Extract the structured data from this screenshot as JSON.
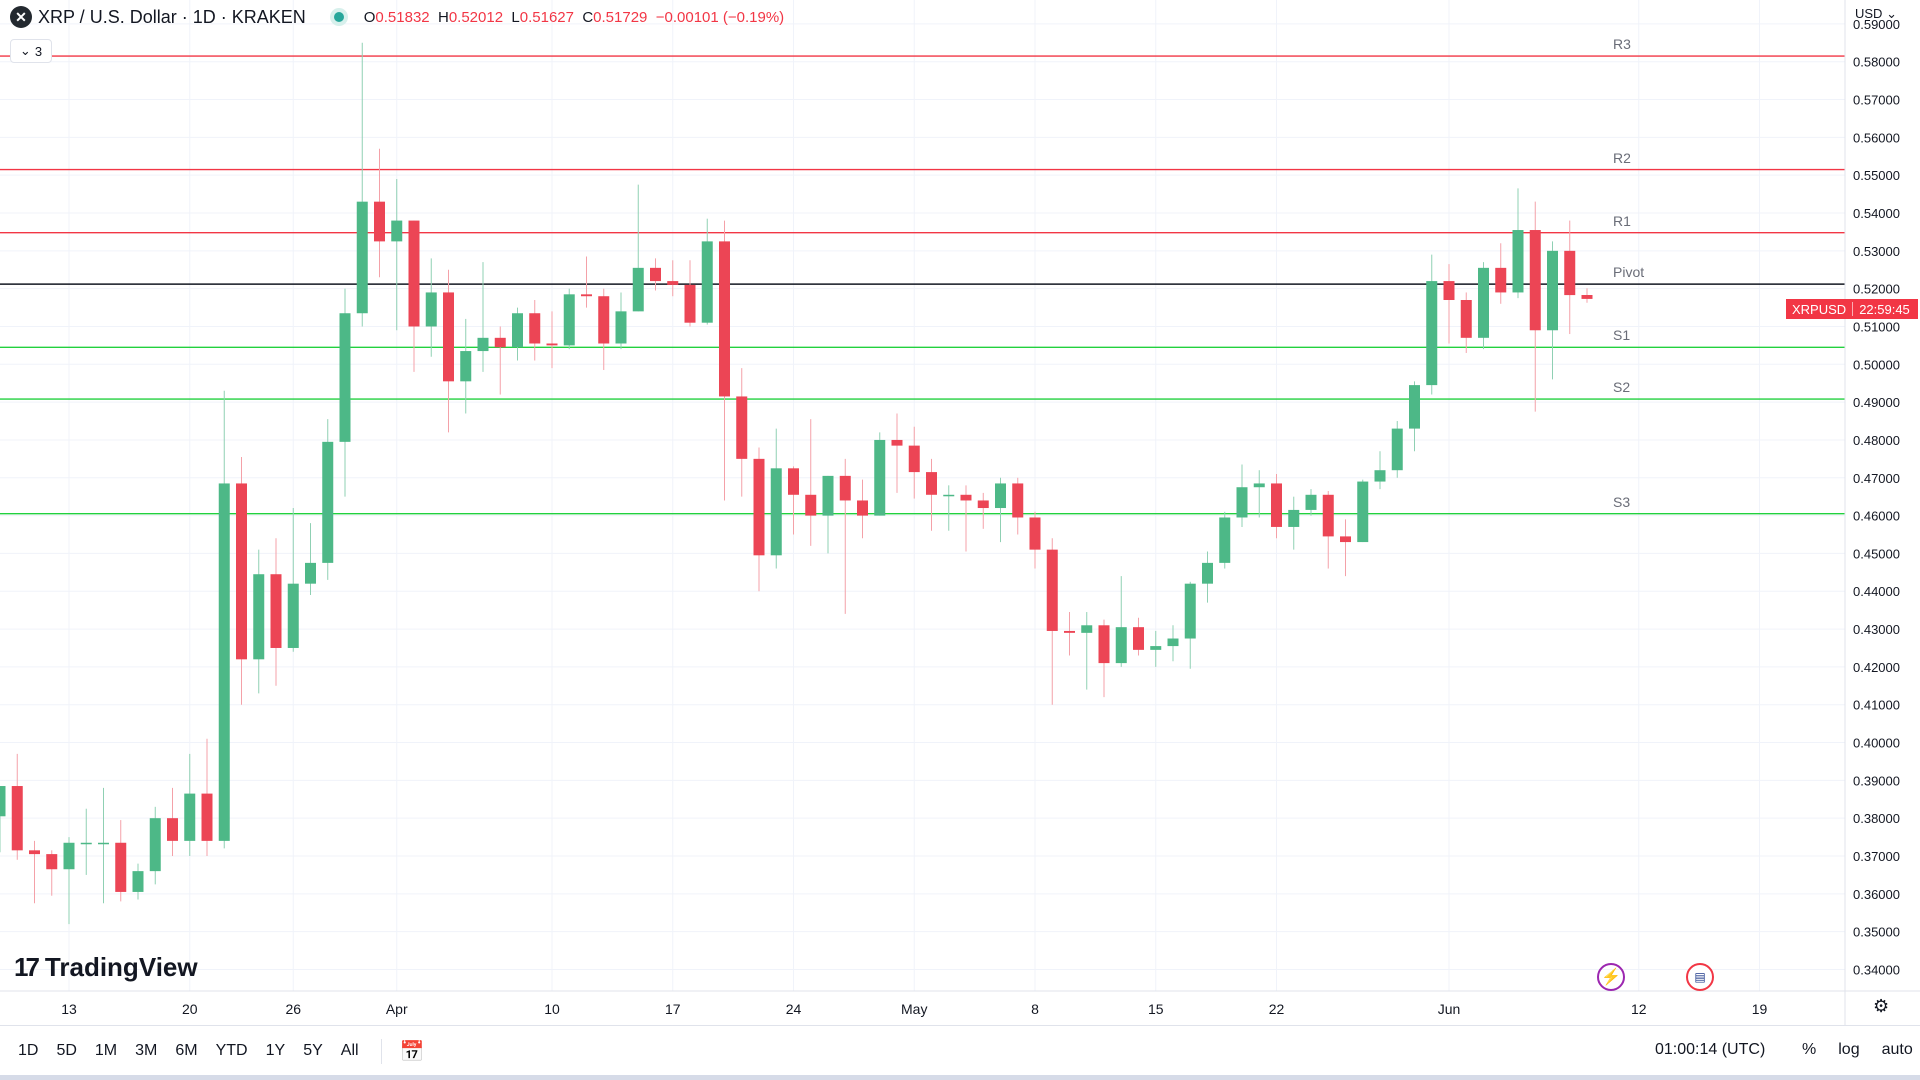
{
  "header": {
    "logo_glyph": "✕",
    "title": "XRP / U.S. Dollar · 1D · KRAKEN",
    "open_label": "O",
    "open": "0.51832",
    "high_label": "H",
    "high": "0.52012",
    "low_label": "L",
    "low": "0.51627",
    "close_label": "C",
    "close": "0.51729",
    "change": "−0.00101 (−0.19%)",
    "indicators_count": "3",
    "currency": "USD"
  },
  "price_tag": {
    "symbol": "XRPUSD",
    "countdown": "22:59:45",
    "color": "#f23645"
  },
  "levels": [
    {
      "label": "R3",
      "price": 0.5815,
      "color": "#f23645"
    },
    {
      "label": "R2",
      "price": 0.5515,
      "color": "#f23645"
    },
    {
      "label": "R1",
      "price": 0.5348,
      "color": "#f23645"
    },
    {
      "label": "Pivot",
      "price": 0.5212,
      "color": "#131722"
    },
    {
      "label": "S1",
      "price": 0.5045,
      "color": "#22d13e"
    },
    {
      "label": "S2",
      "price": 0.4908,
      "color": "#22d13e"
    },
    {
      "label": "S3",
      "price": 0.4605,
      "color": "#22d13e"
    }
  ],
  "chart_data": {
    "type": "candlestick",
    "ylim": [
      0.336,
      0.596
    ],
    "y_ticks": [
      "0.34000",
      "0.35000",
      "0.36000",
      "0.37000",
      "0.38000",
      "0.39000",
      "0.40000",
      "0.41000",
      "0.42000",
      "0.43000",
      "0.44000",
      "0.45000",
      "0.46000",
      "0.47000",
      "0.48000",
      "0.49000",
      "0.50000",
      "0.51000",
      "0.52000",
      "0.53000",
      "0.54000",
      "0.55000",
      "0.56000",
      "0.57000",
      "0.58000",
      "0.59000"
    ],
    "x_ticks": [
      {
        "label": "13",
        "i": 4
      },
      {
        "label": "20",
        "i": 11
      },
      {
        "label": "26",
        "i": 17
      },
      {
        "label": "Apr",
        "i": 23
      },
      {
        "label": "10",
        "i": 32
      },
      {
        "label": "17",
        "i": 39
      },
      {
        "label": "24",
        "i": 46
      },
      {
        "label": "May",
        "i": 53
      },
      {
        "label": "8",
        "i": 60
      },
      {
        "label": "15",
        "i": 67
      },
      {
        "label": "22",
        "i": 74
      },
      {
        "label": "Jun",
        "i": 84
      },
      {
        "label": "12",
        "i": 95
      },
      {
        "label": "19",
        "i": 102
      }
    ],
    "candles": [
      [
        0.3805,
        0.3865,
        0.371,
        0.3885
      ],
      [
        0.3885,
        0.397,
        0.369,
        0.3715
      ],
      [
        0.3715,
        0.374,
        0.3575,
        0.3705
      ],
      [
        0.3705,
        0.3715,
        0.3595,
        0.3665
      ],
      [
        0.3665,
        0.375,
        0.352,
        0.3735
      ],
      [
        0.3735,
        0.3825,
        0.365,
        0.3735
      ],
      [
        0.3735,
        0.388,
        0.3575,
        0.3735
      ],
      [
        0.3735,
        0.3795,
        0.358,
        0.3605
      ],
      [
        0.3605,
        0.368,
        0.3585,
        0.366
      ],
      [
        0.366,
        0.383,
        0.3625,
        0.38
      ],
      [
        0.38,
        0.388,
        0.37,
        0.374
      ],
      [
        0.374,
        0.397,
        0.37,
        0.3865
      ],
      [
        0.3865,
        0.401,
        0.37,
        0.374
      ],
      [
        0.374,
        0.493,
        0.372,
        0.4685
      ],
      [
        0.4685,
        0.4755,
        0.41,
        0.422
      ],
      [
        0.422,
        0.451,
        0.413,
        0.4445
      ],
      [
        0.4445,
        0.454,
        0.415,
        0.425
      ],
      [
        0.425,
        0.462,
        0.424,
        0.442
      ],
      [
        0.442,
        0.458,
        0.439,
        0.4475
      ],
      [
        0.4475,
        0.4855,
        0.443,
        0.4795
      ],
      [
        0.4795,
        0.52,
        0.465,
        0.5135
      ],
      [
        0.5135,
        0.585,
        0.51,
        0.543
      ],
      [
        0.543,
        0.557,
        0.523,
        0.5325
      ],
      [
        0.5325,
        0.549,
        0.509,
        0.538
      ],
      [
        0.538,
        0.538,
        0.498,
        0.51
      ],
      [
        0.51,
        0.528,
        0.502,
        0.519
      ],
      [
        0.519,
        0.525,
        0.482,
        0.4955
      ],
      [
        0.4955,
        0.512,
        0.487,
        0.5035
      ],
      [
        0.5035,
        0.527,
        0.498,
        0.507
      ],
      [
        0.507,
        0.51,
        0.492,
        0.5045
      ],
      [
        0.5045,
        0.515,
        0.501,
        0.5135
      ],
      [
        0.5135,
        0.517,
        0.501,
        0.5055
      ],
      [
        0.5055,
        0.514,
        0.499,
        0.505
      ],
      [
        0.505,
        0.52,
        0.504,
        0.5185
      ],
      [
        0.5185,
        0.5285,
        0.515,
        0.518
      ],
      [
        0.518,
        0.52,
        0.4985,
        0.5055
      ],
      [
        0.5055,
        0.519,
        0.504,
        0.514
      ],
      [
        0.514,
        0.5475,
        0.514,
        0.5255
      ],
      [
        0.5255,
        0.528,
        0.5195,
        0.522
      ],
      [
        0.522,
        0.5275,
        0.518,
        0.521
      ],
      [
        0.521,
        0.5275,
        0.51,
        0.511
      ],
      [
        0.511,
        0.5385,
        0.5105,
        0.5325
      ],
      [
        0.5325,
        0.538,
        0.464,
        0.4915
      ],
      [
        0.4915,
        0.499,
        0.465,
        0.475
      ],
      [
        0.475,
        0.478,
        0.44,
        0.4495
      ],
      [
        0.4495,
        0.483,
        0.446,
        0.4725
      ],
      [
        0.4725,
        0.473,
        0.455,
        0.4655
      ],
      [
        0.4655,
        0.4855,
        0.452,
        0.46
      ],
      [
        0.46,
        0.4705,
        0.45,
        0.4705
      ],
      [
        0.4705,
        0.475,
        0.434,
        0.464
      ],
      [
        0.464,
        0.4695,
        0.454,
        0.46
      ],
      [
        0.46,
        0.482,
        0.46,
        0.48
      ],
      [
        0.48,
        0.487,
        0.466,
        0.4785
      ],
      [
        0.4785,
        0.4835,
        0.4645,
        0.4715
      ],
      [
        0.4715,
        0.475,
        0.456,
        0.4655
      ],
      [
        0.4655,
        0.468,
        0.456,
        0.4655
      ],
      [
        0.4655,
        0.468,
        0.4505,
        0.464
      ],
      [
        0.464,
        0.466,
        0.4565,
        0.462
      ],
      [
        0.462,
        0.47,
        0.453,
        0.4685
      ],
      [
        0.4685,
        0.47,
        0.455,
        0.4595
      ],
      [
        0.4595,
        0.461,
        0.446,
        0.451
      ],
      [
        0.451,
        0.454,
        0.41,
        0.4295
      ],
      [
        0.4295,
        0.4345,
        0.423,
        0.429
      ],
      [
        0.429,
        0.4345,
        0.414,
        0.431
      ],
      [
        0.431,
        0.4325,
        0.412,
        0.421
      ],
      [
        0.421,
        0.444,
        0.42,
        0.4305
      ],
      [
        0.4305,
        0.433,
        0.423,
        0.4245
      ],
      [
        0.4245,
        0.4295,
        0.42,
        0.4255
      ],
      [
        0.4255,
        0.431,
        0.4215,
        0.4275
      ],
      [
        0.4275,
        0.4425,
        0.4195,
        0.442
      ],
      [
        0.442,
        0.4505,
        0.437,
        0.4475
      ],
      [
        0.4475,
        0.461,
        0.446,
        0.4595
      ],
      [
        0.4595,
        0.4735,
        0.457,
        0.4675
      ],
      [
        0.4675,
        0.472,
        0.4595,
        0.4685
      ],
      [
        0.4685,
        0.471,
        0.454,
        0.457
      ],
      [
        0.457,
        0.465,
        0.451,
        0.4615
      ],
      [
        0.4615,
        0.467,
        0.46,
        0.4655
      ],
      [
        0.4655,
        0.4665,
        0.446,
        0.4545
      ],
      [
        0.4545,
        0.459,
        0.444,
        0.453
      ],
      [
        0.453,
        0.4695,
        0.453,
        0.469
      ],
      [
        0.469,
        0.477,
        0.467,
        0.472
      ],
      [
        0.472,
        0.485,
        0.47,
        0.483
      ],
      [
        0.483,
        0.4955,
        0.477,
        0.4945
      ],
      [
        0.4945,
        0.529,
        0.492,
        0.522
      ],
      [
        0.522,
        0.5265,
        0.5055,
        0.517
      ],
      [
        0.517,
        0.519,
        0.503,
        0.507
      ],
      [
        0.507,
        0.527,
        0.504,
        0.5255
      ],
      [
        0.5255,
        0.532,
        0.516,
        0.519
      ],
      [
        0.519,
        0.5465,
        0.5175,
        0.5355
      ],
      [
        0.5355,
        0.543,
        0.4875,
        0.509
      ],
      [
        0.509,
        0.5325,
        0.496,
        0.53
      ],
      [
        0.53,
        0.538,
        0.508,
        0.5183
      ],
      [
        0.51832,
        0.52012,
        0.51627,
        0.51729
      ]
    ]
  },
  "time_ranges": [
    "1D",
    "5D",
    "1M",
    "3M",
    "6M",
    "YTD",
    "1Y",
    "5Y",
    "All"
  ],
  "clock": "01:00:14 (UTC)",
  "options": [
    "%",
    "log",
    "auto"
  ],
  "brand": {
    "name": "TradingView",
    "mark": "17"
  },
  "colors": {
    "up": "#26a69a",
    "up_fill": "#4db887",
    "down": "#ef5350",
    "down_fill": "#ec4555",
    "grid": "#f0f3fa",
    "axis": "#131722"
  }
}
